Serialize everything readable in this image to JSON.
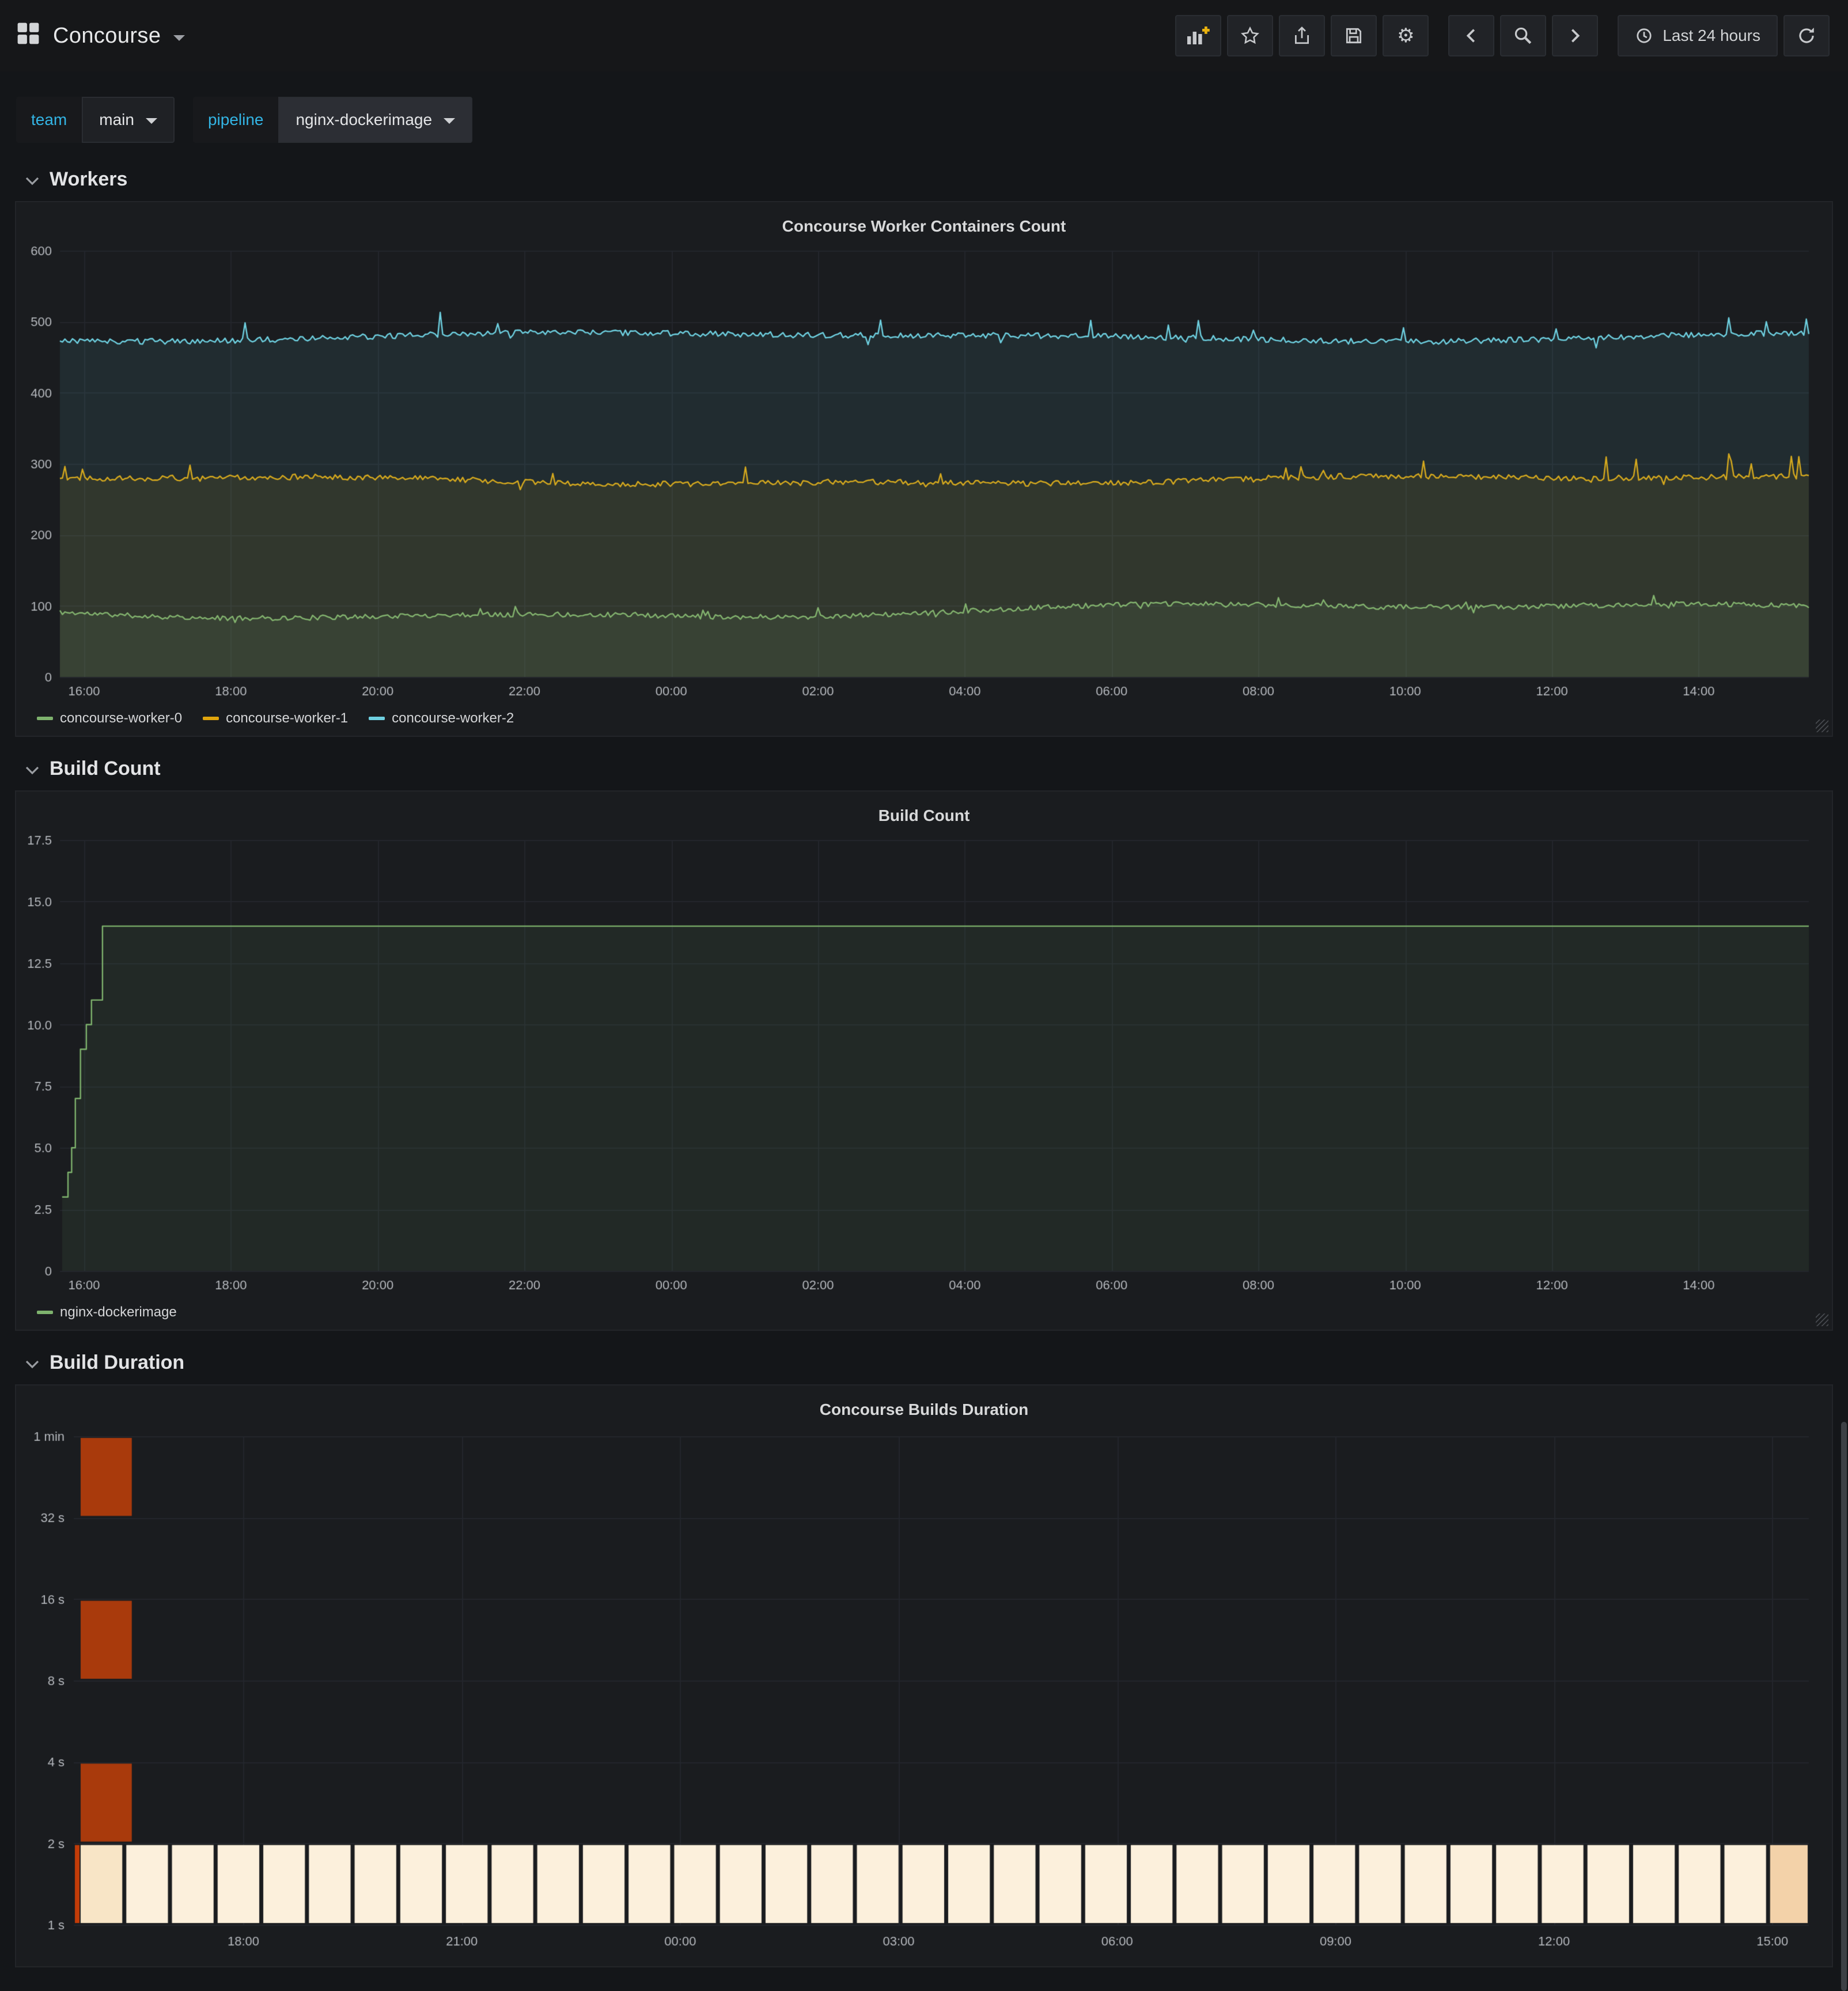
{
  "navbar": {
    "title": "Concourse",
    "time_range": "Last 24 hours"
  },
  "variables": {
    "team_label": "team",
    "team_value": "main",
    "pipeline_label": "pipeline",
    "pipeline_value": "nginx-dockerimage"
  },
  "rows": {
    "workers": "Workers",
    "build_count": "Build Count",
    "build_duration": "Build Duration"
  },
  "colors": {
    "accent_cyan": "#33b5e5",
    "series_green": "#7eb26d",
    "series_yellow": "#e0a50c",
    "series_cyan": "#6ed0e0"
  },
  "chart_data": [
    {
      "type": "line",
      "title": "Concourse Worker Containers Count",
      "x_start": 15.67,
      "x_end": 39.5,
      "x_tick_hours": [
        16,
        18,
        20,
        22,
        24,
        26,
        28,
        30,
        32,
        34,
        36,
        38
      ],
      "x_tick_labels": [
        "16:00",
        "18:00",
        "20:00",
        "22:00",
        "00:00",
        "02:00",
        "04:00",
        "06:00",
        "08:00",
        "10:00",
        "12:00",
        "14:00"
      ],
      "ylim": [
        0,
        600
      ],
      "y_tick_vals": [
        0,
        100,
        200,
        300,
        400,
        500,
        600
      ],
      "y_tick_labels": [
        "0",
        "100",
        "200",
        "300",
        "400",
        "500",
        "600"
      ],
      "grid": true,
      "legend_position": "bottom",
      "series": [
        {
          "name": "concourse-worker-0",
          "color": "#7eb26d",
          "base": 93,
          "jitter": 3.5,
          "wander": 9,
          "spike": 12,
          "seed": 11
        },
        {
          "name": "concourse-worker-1",
          "color": "#e0a50c",
          "base": 277,
          "jitter": 4,
          "wander": 5,
          "spike": 30,
          "seed": 22
        },
        {
          "name": "concourse-worker-2",
          "color": "#6ed0e0",
          "base": 479,
          "jitter": 4,
          "wander": 5,
          "spike": 28,
          "seed": 33
        }
      ]
    },
    {
      "type": "line",
      "title": "Build Count",
      "x_start": 15.67,
      "x_end": 39.5,
      "x_tick_hours": [
        16,
        18,
        20,
        22,
        24,
        26,
        28,
        30,
        32,
        34,
        36,
        38
      ],
      "x_tick_labels": [
        "16:00",
        "18:00",
        "20:00",
        "22:00",
        "00:00",
        "02:00",
        "04:00",
        "06:00",
        "08:00",
        "10:00",
        "12:00",
        "14:00"
      ],
      "ylim": [
        0,
        17.5
      ],
      "y_tick_vals": [
        0,
        2.5,
        5,
        7.5,
        10,
        12.5,
        15,
        17.5
      ],
      "y_tick_labels": [
        "0",
        "2.5",
        "5.0",
        "7.5",
        "10.0",
        "12.5",
        "15.0",
        "17.5"
      ],
      "grid": true,
      "legend_position": "bottom",
      "series": [
        {
          "name": "nginx-dockerimage",
          "color": "#7eb26d",
          "step": true,
          "points": [
            [
              15.7,
              3
            ],
            [
              15.78,
              4
            ],
            [
              15.83,
              5
            ],
            [
              15.88,
              7
            ],
            [
              15.95,
              9
            ],
            [
              16.03,
              10
            ],
            [
              16.1,
              11
            ],
            [
              16.25,
              14
            ],
            [
              39.5,
              14
            ]
          ]
        }
      ]
    },
    {
      "type": "heatmap",
      "title": "Concourse Builds Duration",
      "x_start": 15.67,
      "x_end": 39.5,
      "x_tick_hours": [
        18,
        21,
        24,
        27,
        30,
        33,
        36,
        39
      ],
      "x_tick_labels": [
        "18:00",
        "21:00",
        "00:00",
        "03:00",
        "06:00",
        "09:00",
        "12:00",
        "15:00"
      ],
      "y_tick_labels": [
        "1 s",
        "2 s",
        "4 s",
        "8 s",
        "16 s",
        "32 s",
        "1 min"
      ],
      "y_scale": "log2",
      "rows": 6,
      "dark_cells_rows": [
        5,
        3,
        1
      ],
      "bottom_row_count": 38,
      "colors": {
        "dark": "#a93a0c",
        "cell": "#fcf0dc",
        "cell_first": "#f8e5c6",
        "cell_last": "#f3d2a9",
        "sliver": "#c33c08"
      }
    }
  ]
}
